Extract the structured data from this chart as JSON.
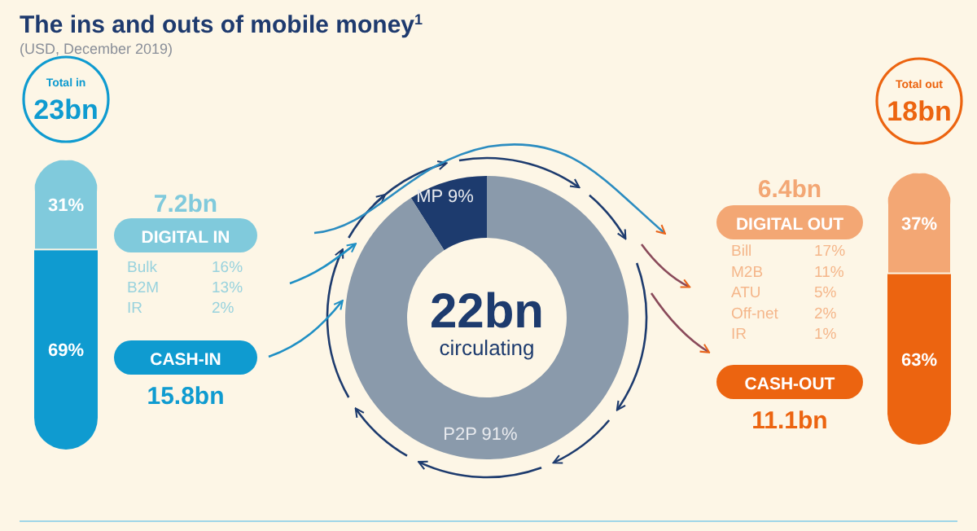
{
  "chart_data": [
    {
      "type": "other",
      "title": "The ins and outs of mobile money$^{1}$",
      "subtitle": "(USD, December 2019)"
    },
    {
      "type": "bar",
      "stacked": true,
      "categories": [
        null
      ],
      "series": [
        {
          "color": "#0f9bd0",
          "values": [
            69
          ],
          "value_labels": [
            "69%"
          ]
        },
        {
          "color": "#80cadc",
          "values": [
            31
          ],
          "value_labels": [
            "31%"
          ]
        }
      ],
      "annotations": [
        "Total in",
        "23bn",
        "7.2bn",
        "DIGITAL IN",
        "Bulk",
        "16%",
        "B2M",
        "13%",
        "IR",
        "2%",
        "CASH-IN",
        "15.8bn"
      ]
    },
    {
      "type": "donut",
      "categories": [
        "MP",
        "P2P"
      ],
      "values": [
        9,
        91
      ],
      "value_labels": [
        "9%",
        "91%"
      ],
      "colors": [
        "#1d3b6e",
        "#8a9aab"
      ],
      "annotations": [
        "22bn",
        "circulating"
      ]
    },
    {
      "type": "bar",
      "stacked": true,
      "categories": [
        null
      ],
      "series": [
        {
          "color": "#ec6410",
          "values": [
            63
          ],
          "value_labels": [
            "63%"
          ]
        },
        {
          "color": "#f3a774",
          "values": [
            37
          ],
          "value_labels": [
            "37%"
          ]
        }
      ],
      "annotations": [
        "Total out",
        "18bn",
        "6.4bn",
        "DIGITAL OUT",
        "Bill",
        "17%",
        "M2B",
        "11%",
        "ATU",
        "5%",
        "Off-net",
        "2%",
        "IR",
        "1%",
        "CASH-OUT",
        "11.1bn"
      ]
    }
  ]
}
